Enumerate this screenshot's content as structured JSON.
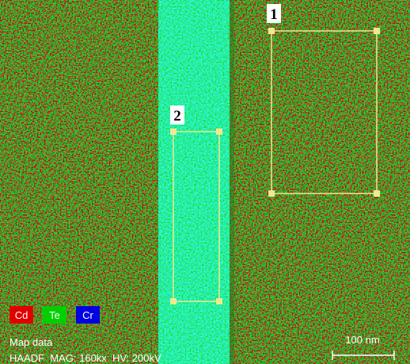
{
  "regions": [
    {
      "label": "1"
    },
    {
      "label": "2"
    }
  ],
  "legend": [
    {
      "label": "Cd",
      "color": "#e00000"
    },
    {
      "label": "Te",
      "color": "#00d000"
    },
    {
      "label": "Cr",
      "color": "#0000e0"
    }
  ],
  "info": {
    "title": "Map data",
    "params": "HAADF  MAG: 160kx  HV: 200kV"
  },
  "scale_bar": {
    "label": "100 nm"
  }
}
